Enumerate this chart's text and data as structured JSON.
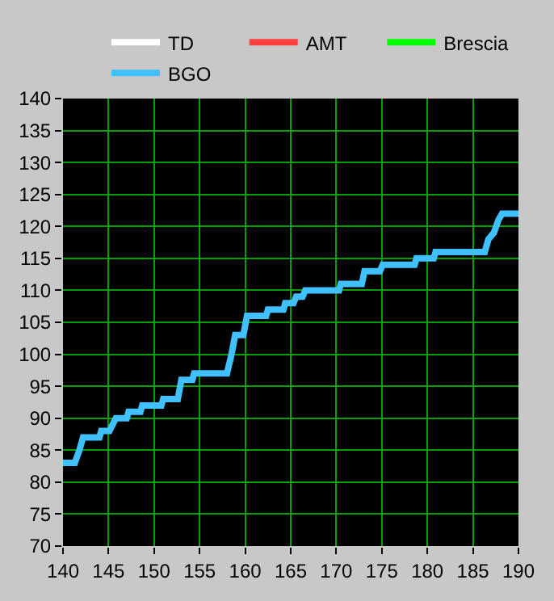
{
  "chart_data": {
    "type": "line",
    "legend": "top",
    "grid": true,
    "marker": "none",
    "line_style": "solid",
    "xlim": [
      140,
      190
    ],
    "xticks": [
      140,
      145,
      150,
      155,
      160,
      165,
      170,
      175,
      180,
      185,
      190
    ],
    "ylim": [
      70,
      140
    ],
    "yticks": [
      70,
      75,
      80,
      85,
      90,
      95,
      100,
      105,
      110,
      115,
      120,
      125,
      130,
      135,
      140
    ],
    "series": [
      {
        "name": "TD",
        "color": "#ffffff"
      },
      {
        "name": "AMT",
        "color": "#ff4040"
      },
      {
        "name": "Brescia",
        "color": "#00ff00"
      },
      {
        "name": "BGO",
        "color": "#40c0ff",
        "x": [
          140,
          141.3,
          141.8,
          142.2,
          144,
          144.2,
          145.1,
          145.8,
          147,
          147.2,
          148.5,
          148.7,
          150.8,
          151,
          152.6,
          153,
          154.2,
          154.4,
          158,
          158.5,
          158.9,
          159.8,
          160.2,
          162.3,
          162.5,
          164.2,
          164.4,
          165.3,
          165.6,
          166.3,
          166.6,
          170.3,
          170.5,
          172.8,
          173.1,
          174.8,
          175.1,
          178.6,
          178.8,
          180.7,
          180.9,
          186.3,
          186.7,
          187.3,
          187.8,
          188.2,
          190
        ],
        "values": [
          83,
          83,
          85,
          87,
          87,
          88,
          88,
          90,
          90,
          91,
          91,
          92,
          92,
          93,
          93,
          96,
          96,
          97,
          97,
          100,
          103,
          103,
          106,
          106,
          107,
          107,
          108,
          108,
          109,
          109,
          110,
          110,
          111,
          111,
          113,
          113,
          114,
          114,
          115,
          115,
          116,
          116,
          118,
          119,
          121,
          122,
          122
        ]
      }
    ]
  }
}
